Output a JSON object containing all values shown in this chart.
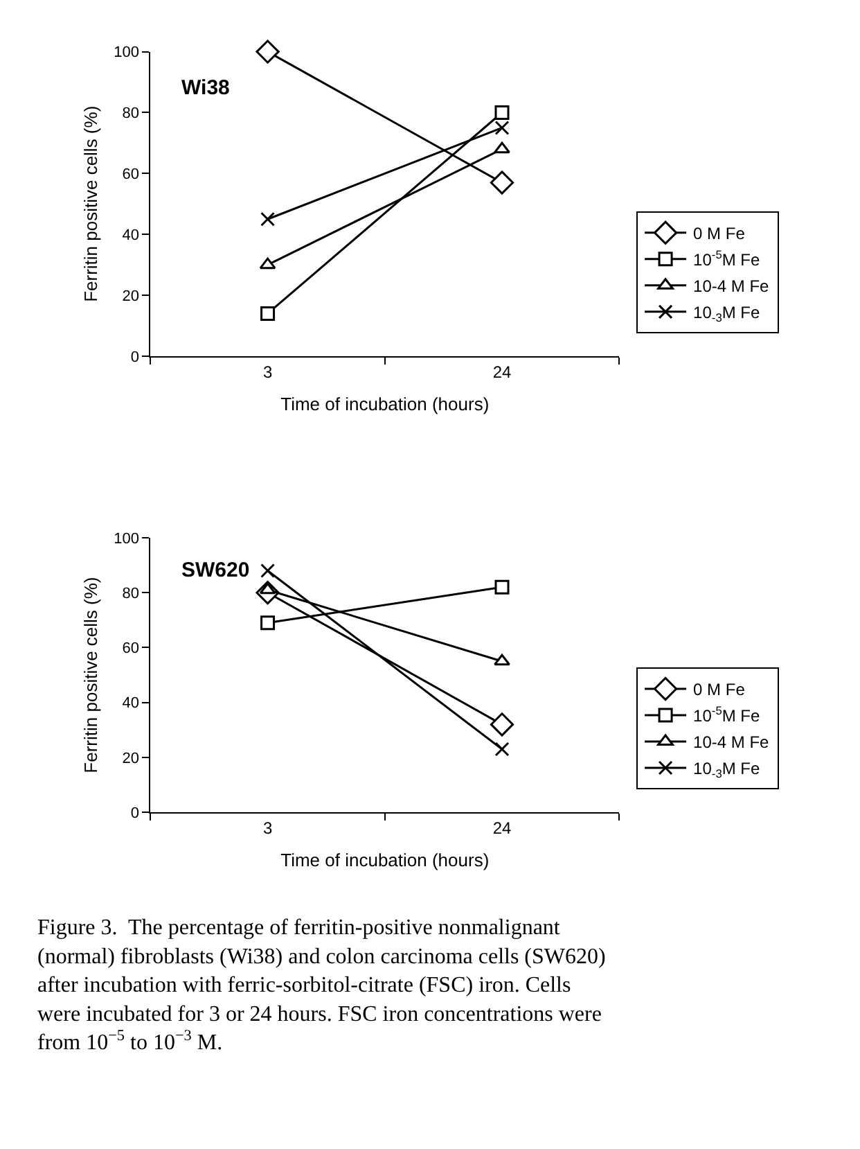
{
  "chart_data": [
    {
      "type": "line",
      "title": "Wi38",
      "xlabel": "Time of incubation (hours)",
      "ylabel": "Ferritin positive cells (%)",
      "categories": [
        "3",
        "24"
      ],
      "ylim": [
        0,
        100
      ],
      "yticks": [
        0,
        20,
        40,
        60,
        80,
        100
      ],
      "legend": "bottom right",
      "line_style": "solid",
      "series": [
        {
          "name": "0 M Fe",
          "color": "#000000",
          "marker": "diamond",
          "values": [
            100,
            57
          ]
        },
        {
          "name": "10$^{-5}$M Fe",
          "color": "#000000",
          "marker": "square",
          "values": [
            14,
            80
          ]
        },
        {
          "name": "10-4 M Fe",
          "color": "#000000",
          "marker": "triangle",
          "values": [
            30,
            68
          ]
        },
        {
          "name": "10$_{-3}$M Fe",
          "color": "#000000",
          "marker": "cross",
          "values": [
            45,
            75
          ]
        }
      ]
    },
    {
      "type": "line",
      "title": "SW620",
      "xlabel": "Time of incubation (hours)",
      "ylabel": "Ferritin positive cells (%)",
      "categories": [
        "3",
        "24"
      ],
      "ylim": [
        0,
        100
      ],
      "yticks": [
        0,
        20,
        40,
        60,
        80,
        100
      ],
      "legend": "bottom right",
      "line_style": "solid",
      "series": [
        {
          "name": "0 M Fe",
          "color": "#000000",
          "marker": "diamond",
          "values": [
            80,
            32
          ]
        },
        {
          "name": "10$^{-5}$M Fe",
          "color": "#000000",
          "marker": "square",
          "values": [
            69,
            82
          ]
        },
        {
          "name": "10-4 M Fe",
          "color": "#000000",
          "marker": "triangle",
          "values": [
            81,
            55
          ]
        },
        {
          "name": "10$_{-3}$M Fe",
          "color": "#000000",
          "marker": "cross",
          "values": [
            88,
            23
          ]
        }
      ],
      "annotations": [
        "Figure 3.  The percentage of ferritin-positive nonmalignant (normal) fibroblasts (Wi38) and colon carcinoma cells (SW620) after incubation with ferric-sorbitol-citrate (FSC) iron. Cells were incubated for 3 or 24 hours. FSC iron concentrations were from 10$^{−5}$ to 10$^{−3}$ M."
      ]
    }
  ]
}
